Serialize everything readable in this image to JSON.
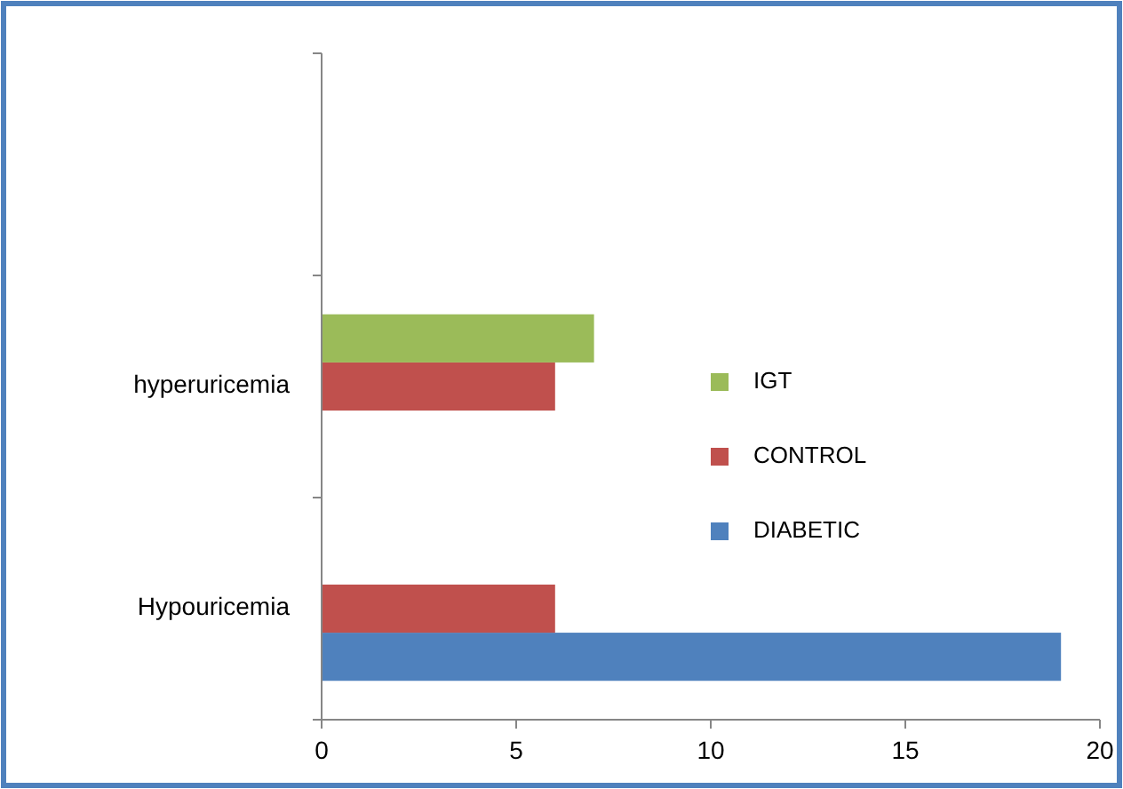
{
  "chart_data": {
    "type": "bar",
    "orientation": "horizontal",
    "categories": [
      null,
      "hyperuricemia",
      "Hypouricemia"
    ],
    "series": [
      {
        "name": "DIABETIC",
        "color": "#4f81bd",
        "values": [
          null,
          null,
          19
        ]
      },
      {
        "name": "CONTROL",
        "color": "#c0504d",
        "values": [
          null,
          6,
          6
        ]
      },
      {
        "name": "IGT",
        "color": "#9bbb59",
        "values": [
          null,
          7,
          null
        ]
      }
    ],
    "xlim": [
      0,
      20
    ],
    "xticks": [
      0,
      5,
      10,
      15,
      20
    ],
    "grid": false,
    "legend": "right"
  }
}
